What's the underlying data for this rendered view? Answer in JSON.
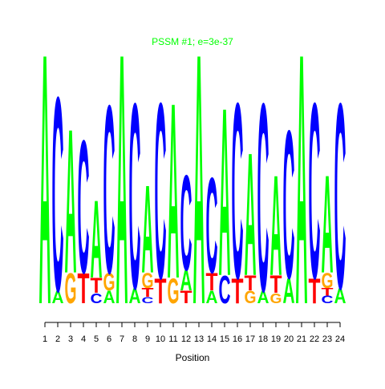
{
  "chart_data": {
    "type": "sequence-logo",
    "title": "PSSM #1; e=3e-37",
    "x_label": "Position",
    "categories": [
      1,
      2,
      3,
      4,
      5,
      6,
      7,
      8,
      9,
      10,
      11,
      12,
      13,
      14,
      15,
      16,
      17,
      18,
      19,
      20,
      21,
      22,
      23,
      24
    ],
    "colors": {
      "A": "#00ff00",
      "C": "#0000ff",
      "G": "#ffa500",
      "T": "#ff0000"
    },
    "stacks": [
      {
        "letters": [
          "A"
        ],
        "heights": [
          2.0
        ]
      },
      {
        "letters": [
          "A",
          "C"
        ],
        "heights": [
          0.1,
          1.55
        ]
      },
      {
        "letters": [
          "G",
          "A"
        ],
        "heights": [
          0.24,
          1.15
        ]
      },
      {
        "letters": [
          "T",
          "C"
        ],
        "heights": [
          0.24,
          1.06
        ]
      },
      {
        "letters": [
          "C",
          "T",
          "A"
        ],
        "heights": [
          0.08,
          0.12,
          0.62
        ]
      },
      {
        "letters": [
          "A",
          "G",
          "C"
        ],
        "heights": [
          0.1,
          0.14,
          1.34
        ]
      },
      {
        "letters": [
          "A"
        ],
        "heights": [
          2.0
        ]
      },
      {
        "letters": [
          "A",
          "C"
        ],
        "heights": [
          0.12,
          1.48
        ]
      },
      {
        "letters": [
          "C",
          "T",
          "G",
          "A"
        ],
        "heights": [
          0.05,
          0.07,
          0.12,
          0.7
        ]
      },
      {
        "letters": [
          "T",
          "C"
        ],
        "heights": [
          0.2,
          1.4
        ]
      },
      {
        "letters": [
          "G",
          "A"
        ],
        "heights": [
          0.2,
          1.4
        ]
      },
      {
        "letters": [
          "T",
          "A",
          "C"
        ],
        "heights": [
          0.1,
          0.16,
          0.76
        ]
      },
      {
        "letters": [
          "A"
        ],
        "heights": [
          2.0
        ]
      },
      {
        "letters": [
          "A",
          "T",
          "C"
        ],
        "heights": [
          0.1,
          0.14,
          0.76
        ]
      },
      {
        "letters": [
          "C",
          "A"
        ],
        "heights": [
          0.22,
          1.34
        ]
      },
      {
        "letters": [
          "T",
          "C"
        ],
        "heights": [
          0.2,
          1.4
        ]
      },
      {
        "letters": [
          "G",
          "T",
          "A"
        ],
        "heights": [
          0.1,
          0.12,
          0.98
        ]
      },
      {
        "letters": [
          "A",
          "C"
        ],
        "heights": [
          0.1,
          1.5
        ]
      },
      {
        "letters": [
          "G",
          "T",
          "A"
        ],
        "heights": [
          0.08,
          0.14,
          0.8
        ]
      },
      {
        "letters": [
          "A",
          "C"
        ],
        "heights": [
          0.2,
          1.18
        ]
      },
      {
        "letters": [
          "A"
        ],
        "heights": [
          2.0
        ]
      },
      {
        "letters": [
          "T",
          "C"
        ],
        "heights": [
          0.2,
          1.4
        ]
      },
      {
        "letters": [
          "C",
          "T",
          "G",
          "A"
        ],
        "heights": [
          0.06,
          0.06,
          0.12,
          0.78
        ]
      },
      {
        "letters": [
          "A",
          "C"
        ],
        "heights": [
          0.12,
          1.48
        ]
      }
    ]
  }
}
